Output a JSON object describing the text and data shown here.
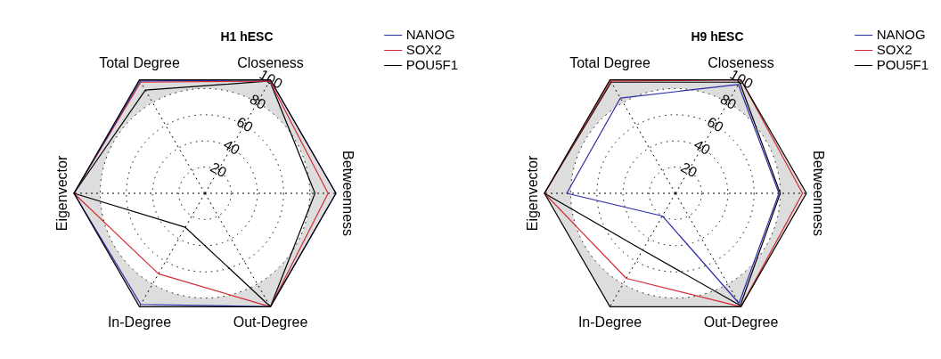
{
  "chart_data": [
    {
      "type": "radar",
      "title": "H1 hESC",
      "categories": [
        "Closeness",
        "Betweenness",
        "Out-Degree",
        "In-Degree",
        "Eigenvector",
        "Total Degree"
      ],
      "ylim": [
        0,
        100
      ],
      "yticks": [
        20,
        40,
        60,
        80,
        100
      ],
      "grid": true,
      "legend": "top right",
      "marker": "none",
      "line_style": "solid",
      "series": [
        {
          "name": "NANOG",
          "color": "#2b2ba8",
          "values": [
            100,
            100,
            100,
            98,
            100,
            99
          ]
        },
        {
          "name": "SOX2",
          "color": "#d42a33",
          "values": [
            99,
            94,
            100,
            71,
            100,
            98
          ]
        },
        {
          "name": "POU5F1",
          "color": "#000000",
          "values": [
            99,
            84,
            100,
            30,
            100,
            91
          ]
        }
      ]
    },
    {
      "type": "radar",
      "title": "H9 hESC",
      "categories": [
        "Closeness",
        "Betweenness",
        "Out-Degree",
        "In-Degree",
        "Eigenvector",
        "Total Degree"
      ],
      "ylim": [
        0,
        100
      ],
      "yticks": [
        20,
        40,
        60,
        80,
        100
      ],
      "grid": true,
      "legend": "top right",
      "marker": "none",
      "line_style": "solid",
      "series": [
        {
          "name": "NANOG",
          "color": "#2b2ba8",
          "values": [
            96,
            79,
            97,
            20,
            83,
            84
          ]
        },
        {
          "name": "SOX2",
          "color": "#d42a33",
          "values": [
            100,
            97,
            100,
            75,
            100,
            99
          ]
        },
        {
          "name": "POU5F1",
          "color": "#000000",
          "values": [
            98,
            80,
            99,
            50,
            100,
            98
          ]
        }
      ]
    }
  ]
}
